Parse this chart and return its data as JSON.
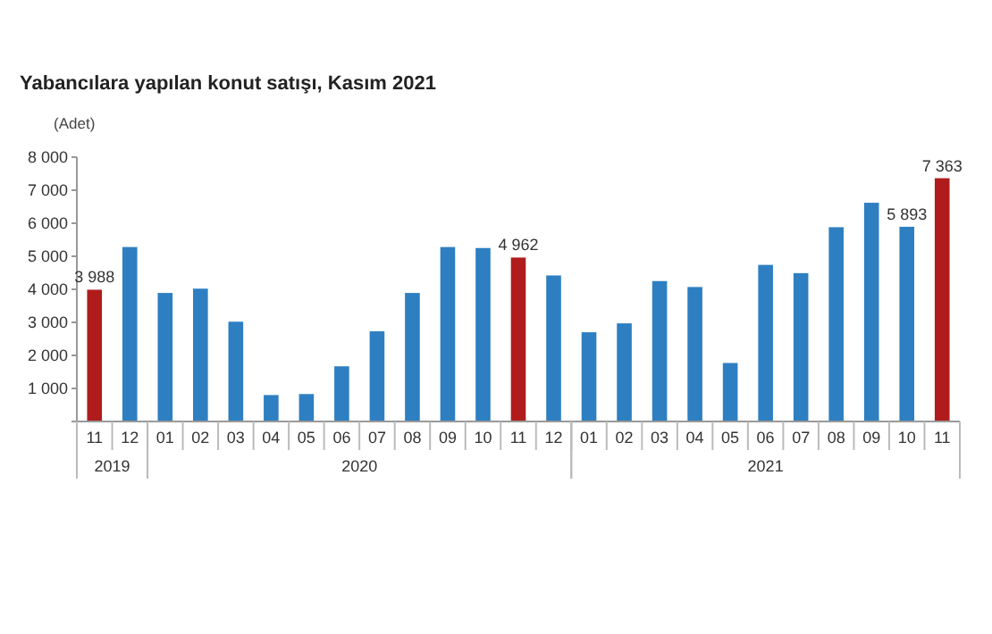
{
  "chart_data": {
    "type": "bar",
    "title": "Yabancılara yapılan konut satışı, Kasım 2021",
    "ylabel": "(Adet)",
    "categories": [
      "11",
      "12",
      "01",
      "02",
      "03",
      "04",
      "05",
      "06",
      "07",
      "08",
      "09",
      "10",
      "11",
      "12",
      "01",
      "02",
      "03",
      "04",
      "05",
      "06",
      "07",
      "08",
      "09",
      "10",
      "11"
    ],
    "values": [
      3988,
      5280,
      3890,
      4020,
      3020,
      800,
      830,
      1670,
      2730,
      3890,
      5280,
      5250,
      4962,
      4420,
      2700,
      2970,
      4250,
      4070,
      1770,
      4740,
      4490,
      5880,
      6620,
      5893,
      7363
    ],
    "colors": [
      "#b01c1c",
      "#2e7fc1",
      "#2e7fc1",
      "#2e7fc1",
      "#2e7fc1",
      "#2e7fc1",
      "#2e7fc1",
      "#2e7fc1",
      "#2e7fc1",
      "#2e7fc1",
      "#2e7fc1",
      "#2e7fc1",
      "#b01c1c",
      "#2e7fc1",
      "#2e7fc1",
      "#2e7fc1",
      "#2e7fc1",
      "#2e7fc1",
      "#2e7fc1",
      "#2e7fc1",
      "#2e7fc1",
      "#2e7fc1",
      "#2e7fc1",
      "#2e7fc1",
      "#b01c1c"
    ],
    "value_labels": [
      "3 988",
      null,
      null,
      null,
      null,
      null,
      null,
      null,
      null,
      null,
      null,
      null,
      "4 962",
      null,
      null,
      null,
      null,
      null,
      null,
      null,
      null,
      null,
      null,
      "5 893",
      "7 363"
    ],
    "annotations": [
      "2019",
      "2020",
      "2021"
    ],
    "ylim": [
      0,
      8000
    ],
    "yticks": [
      {
        "value": 0,
        "label": null
      },
      {
        "value": 1000,
        "label": "1 000"
      },
      {
        "value": 2000,
        "label": "2 000"
      },
      {
        "value": 3000,
        "label": "3 000"
      },
      {
        "value": 4000,
        "label": "4 000"
      },
      {
        "value": 5000,
        "label": "5 000"
      },
      {
        "value": 6000,
        "label": "6 000"
      },
      {
        "value": 7000,
        "label": "7 000"
      },
      {
        "value": 8000,
        "label": "8 000"
      }
    ],
    "grid": false
  }
}
